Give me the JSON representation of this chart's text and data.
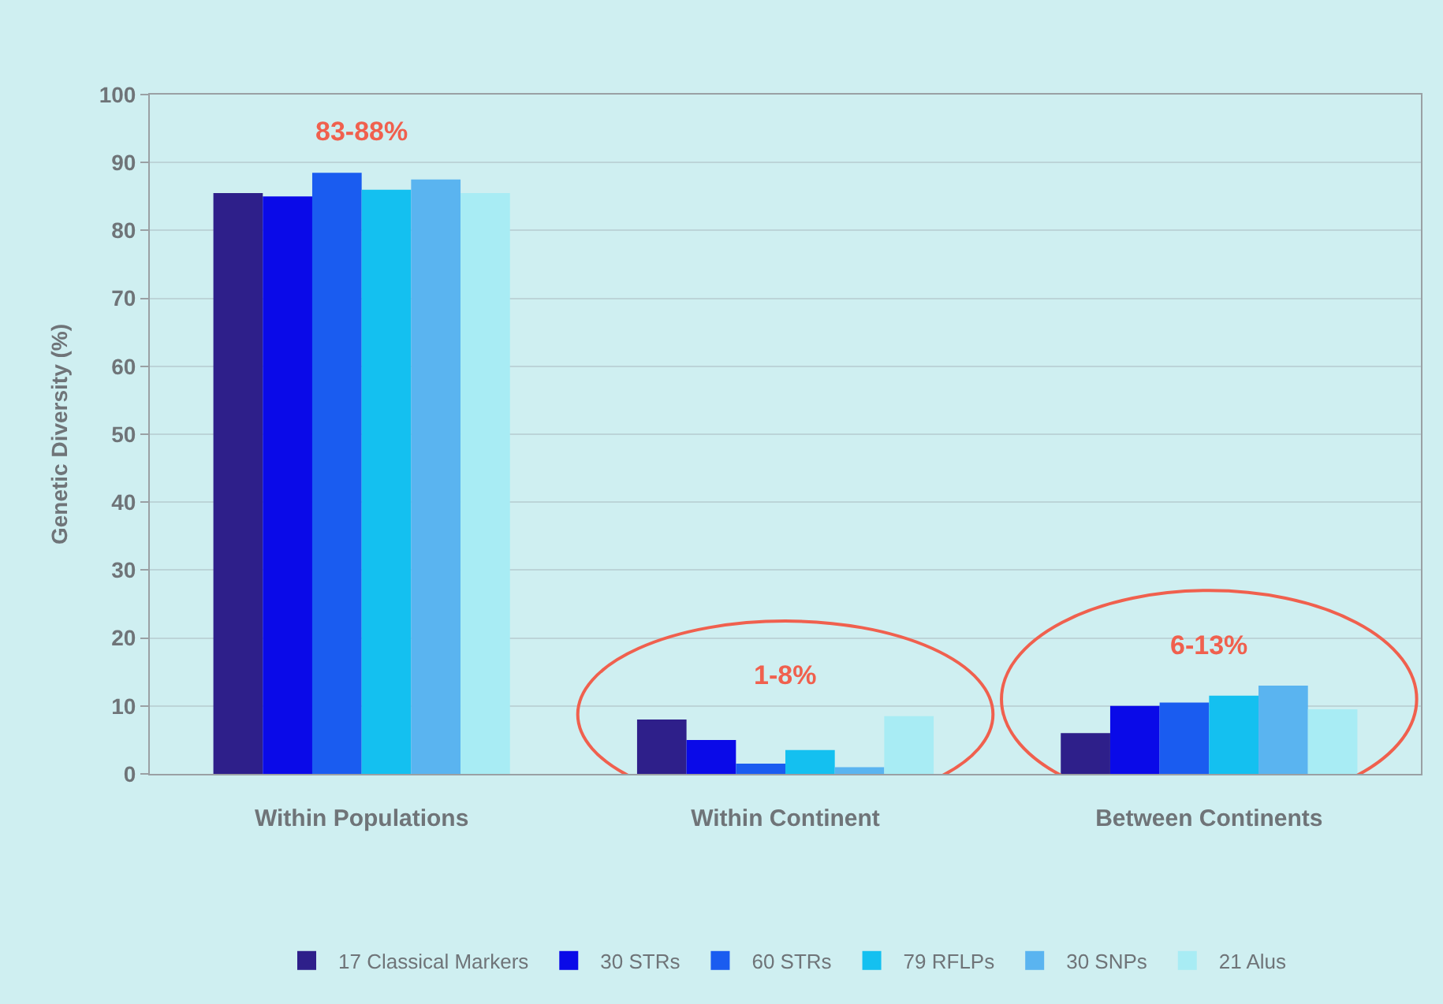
{
  "chart_data": {
    "type": "bar",
    "ylabel": "Genetic Diversity (%)",
    "categories": [
      "Within Populations",
      "Within Continent",
      "Between Continents"
    ],
    "series": [
      {
        "name": "17 Classical Markers",
        "color": "#2e1f8a",
        "values": [
          85.5,
          8,
          6
        ]
      },
      {
        "name": "30 STRs",
        "color": "#0a0ae8",
        "values": [
          85,
          5,
          10
        ]
      },
      {
        "name": "60 STRs",
        "color": "#1a5cf0",
        "values": [
          88.5,
          1.5,
          10.5
        ]
      },
      {
        "name": "79 RFLPs",
        "color": "#14c0f0",
        "values": [
          86,
          3.5,
          11.5
        ]
      },
      {
        "name": "30 SNPs",
        "color": "#5ab4f0",
        "values": [
          87.5,
          1,
          13
        ]
      },
      {
        "name": "21 Alus",
        "color": "#a8ecf4",
        "values": [
          85.5,
          8.5,
          9.5
        ]
      }
    ],
    "ylim": [
      0,
      100
    ],
    "yticks": [
      0,
      10,
      20,
      30,
      40,
      50,
      60,
      70,
      80,
      90,
      100
    ],
    "annotations": [
      "83-88%",
      "1-8%",
      "6-13%"
    ],
    "grid": "y",
    "legend": "bottom"
  }
}
